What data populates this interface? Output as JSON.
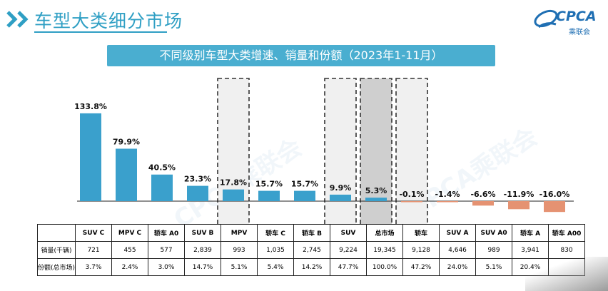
{
  "header": {
    "title": "车型大类细分市场"
  },
  "logo": {
    "name": "CPCA",
    "subtitle": "乘联会"
  },
  "subtitle": "不同级别车型大类增速、销量和份额（2023年1-11月）",
  "colors": {
    "positive": "#3aa0cc",
    "negative": "#e59272",
    "highlight_fill": "#f0f0f0",
    "total_fill": "#cfcfcf",
    "title_blue": "#2f9fc4"
  },
  "chart_data": {
    "type": "bar",
    "categories": [
      "SUV C",
      "MPV C",
      "轿车 A0",
      "SUV B",
      "MPV",
      "轿车 C",
      "轿车 B",
      "SUV",
      "总市场",
      "轿车",
      "SUV A",
      "SUV A0",
      "轿车 A",
      "轿车 A00"
    ],
    "values": [
      133.8,
      79.9,
      40.5,
      23.3,
      17.8,
      15.7,
      15.7,
      9.9,
      5.3,
      -0.1,
      -1.4,
      -6.6,
      -11.9,
      -16.0
    ],
    "value_labels": [
      "133.8%",
      "79.9%",
      "40.5%",
      "23.3%",
      "17.8%",
      "15.7%",
      "15.7%",
      "9.9%",
      "5.3%",
      "-0.1%",
      "-1.4%",
      "-6.6%",
      "-11.9%",
      "-16.0%"
    ],
    "highlighted": [
      "MPV",
      "SUV",
      "总市场",
      "轿车"
    ],
    "ylim": [
      -20,
      140
    ],
    "grid": false,
    "table": {
      "rows": [
        {
          "label": "销量(千辆)",
          "values": [
            "721",
            "455",
            "577",
            "2,839",
            "993",
            "1,035",
            "2,745",
            "9,224",
            "19,345",
            "9,128",
            "4,646",
            "989",
            "3,941",
            "830"
          ]
        },
        {
          "label": "份额(总市场)",
          "values": [
            "3.7%",
            "2.4%",
            "3.0%",
            "14.7%",
            "5.1%",
            "5.4%",
            "14.2%",
            "47.7%",
            "100.0%",
            "47.2%",
            "24.0%",
            "5.1%",
            "20.4%",
            ""
          ]
        }
      ]
    }
  }
}
